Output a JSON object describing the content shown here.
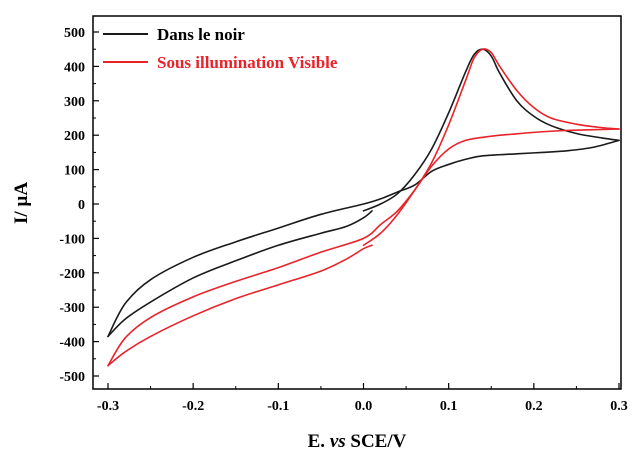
{
  "chart_data": {
    "type": "line",
    "title": "",
    "xlabel_parts": [
      "E. ",
      "vs",
      " SCE/V"
    ],
    "ylabel": "I/ µA",
    "xlim": [
      -0.3,
      0.3
    ],
    "ylim": [
      -500,
      500
    ],
    "x_ticks": [
      "-0.3",
      "-0.2",
      "-0.1",
      "0.0",
      "0.1",
      "0.2",
      "0.3"
    ],
    "y_ticks": [
      "500",
      "400",
      "300",
      "200",
      "100",
      "0",
      "-100",
      "-200",
      "-300",
      "-400",
      "-500"
    ],
    "grid": false,
    "legend_position": "top-left",
    "series": [
      {
        "name": "Dans le noir",
        "color": "#1a1a1a",
        "forward": [
          [
            0.0,
            -20
          ],
          [
            0.02,
            0
          ],
          [
            0.04,
            30
          ],
          [
            0.06,
            85
          ],
          [
            0.08,
            160
          ],
          [
            0.1,
            265
          ],
          [
            0.12,
            385
          ],
          [
            0.13,
            435
          ],
          [
            0.14,
            450
          ],
          [
            0.15,
            430
          ],
          [
            0.16,
            380
          ],
          [
            0.18,
            300
          ],
          [
            0.2,
            255
          ],
          [
            0.22,
            228
          ],
          [
            0.25,
            205
          ],
          [
            0.28,
            192
          ],
          [
            0.3,
            185
          ]
        ],
        "reverse": [
          [
            0.3,
            185
          ],
          [
            0.27,
            165
          ],
          [
            0.24,
            155
          ],
          [
            0.21,
            150
          ],
          [
            0.18,
            146
          ],
          [
            0.14,
            140
          ],
          [
            0.12,
            130
          ],
          [
            0.1,
            115
          ],
          [
            0.08,
            95
          ],
          [
            0.06,
            55
          ],
          [
            0.04,
            35
          ],
          [
            0.02,
            15
          ],
          [
            0.0,
            0
          ],
          [
            -0.05,
            -30
          ],
          [
            -0.1,
            -70
          ],
          [
            -0.15,
            -110
          ],
          [
            -0.2,
            -155
          ],
          [
            -0.25,
            -220
          ],
          [
            -0.28,
            -290
          ],
          [
            -0.3,
            -385
          ]
        ],
        "forward_start": [
          [
            -0.3,
            -385
          ],
          [
            -0.28,
            -335
          ],
          [
            -0.25,
            -285
          ],
          [
            -0.2,
            -215
          ],
          [
            -0.15,
            -165
          ],
          [
            -0.1,
            -120
          ],
          [
            -0.05,
            -85
          ],
          [
            -0.02,
            -65
          ],
          [
            0.0,
            -40
          ],
          [
            0.01,
            -20
          ]
        ]
      },
      {
        "name": "Sous illumination Visible",
        "color": "#e8232a",
        "forward": [
          [
            0.0,
            -120
          ],
          [
            0.02,
            -85
          ],
          [
            0.04,
            -30
          ],
          [
            0.06,
            40
          ],
          [
            0.08,
            120
          ],
          [
            0.1,
            230
          ],
          [
            0.12,
            360
          ],
          [
            0.13,
            425
          ],
          [
            0.14,
            450
          ],
          [
            0.15,
            440
          ],
          [
            0.16,
            400
          ],
          [
            0.18,
            330
          ],
          [
            0.2,
            280
          ],
          [
            0.22,
            250
          ],
          [
            0.25,
            232
          ],
          [
            0.28,
            222
          ],
          [
            0.3,
            218
          ]
        ],
        "reverse": [
          [
            0.3,
            218
          ],
          [
            0.27,
            216
          ],
          [
            0.24,
            214
          ],
          [
            0.21,
            210
          ],
          [
            0.18,
            204
          ],
          [
            0.15,
            197
          ],
          [
            0.12,
            185
          ],
          [
            0.1,
            160
          ],
          [
            0.08,
            110
          ],
          [
            0.06,
            40
          ],
          [
            0.04,
            -20
          ],
          [
            0.02,
            -60
          ],
          [
            0.0,
            -100
          ],
          [
            -0.05,
            -140
          ],
          [
            -0.1,
            -185
          ],
          [
            -0.15,
            -225
          ],
          [
            -0.2,
            -270
          ],
          [
            -0.25,
            -330
          ],
          [
            -0.28,
            -390
          ],
          [
            -0.3,
            -470
          ]
        ],
        "forward_start": [
          [
            -0.3,
            -470
          ],
          [
            -0.28,
            -430
          ],
          [
            -0.25,
            -385
          ],
          [
            -0.2,
            -325
          ],
          [
            -0.15,
            -275
          ],
          [
            -0.1,
            -235
          ],
          [
            -0.05,
            -195
          ],
          [
            -0.02,
            -160
          ],
          [
            0.0,
            -130
          ],
          [
            0.01,
            -120
          ]
        ]
      }
    ]
  }
}
